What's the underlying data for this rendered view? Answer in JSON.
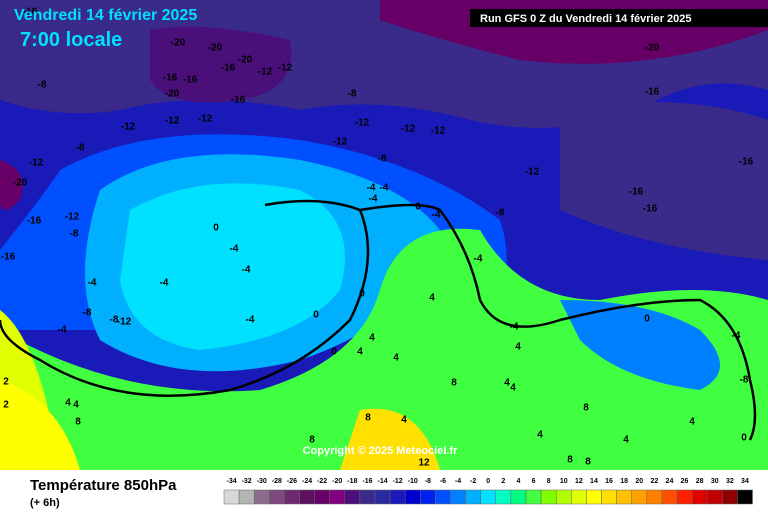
{
  "header": {
    "date": "Vendredi 14 février 2025",
    "time": "7:00 locale",
    "run": "Run GFS 0 Z du Vendredi 14 février 2025"
  },
  "footer": {
    "title": "Température 850hPa",
    "step": "(+ 6h)"
  },
  "copyright": "Copyright © 2025 Meteociel.fr",
  "legend": {
    "values": [
      -34,
      -32,
      -30,
      -28,
      -26,
      -24,
      -22,
      -20,
      -18,
      -16,
      -14,
      -12,
      -10,
      -8,
      -6,
      -4,
      -2,
      0,
      2,
      4,
      6,
      8,
      10,
      12,
      14,
      16,
      18,
      20,
      22,
      24,
      26,
      28,
      30,
      32,
      34
    ],
    "colors": [
      "#d8d8d8",
      "#b4b4b4",
      "#8c6c8c",
      "#7e4a7e",
      "#6e2a70",
      "#5e1060",
      "#660066",
      "#800080",
      "#4b0f7a",
      "#3a2a8a",
      "#2a2aa0",
      "#1a1ab8",
      "#0000d0",
      "#0020f0",
      "#0050ff",
      "#0080ff",
      "#00b0ff",
      "#00e0ff",
      "#00ffc0",
      "#00ff80",
      "#40ff40",
      "#80ff00",
      "#b0ff00",
      "#e0ff00",
      "#ffff00",
      "#ffe000",
      "#ffc000",
      "#ffa000",
      "#ff8000",
      "#ff5000",
      "#ff2000",
      "#e00000",
      "#c00000",
      "#900000",
      "#000000"
    ]
  },
  "map_labels": [
    "-16",
    "-20",
    "-20",
    "-16",
    "-16",
    "-20",
    "-16",
    "-20",
    "-12",
    "-12",
    "-16",
    "-8",
    "-8",
    "-12",
    "-12",
    "-12",
    "-12",
    "-12",
    "-12",
    "-12",
    "-8",
    "-20",
    "-16",
    "-12",
    "-16",
    "-16",
    "-16",
    "-12",
    "-8",
    "-20",
    "-16",
    "-12",
    "-8",
    "-16",
    "-8",
    "-4",
    "-4",
    "-4",
    "0",
    "-4",
    "0",
    "-4",
    "-4",
    "-4",
    "-4",
    "-8",
    "-8",
    "-12",
    "-4",
    "-4",
    "0",
    "0",
    "0",
    "4",
    "4",
    "4",
    "4",
    "8",
    "4",
    "4",
    "-4",
    "4",
    "-4",
    "0",
    "-4",
    "-8",
    "4",
    "4",
    "2",
    "2",
    "8",
    "8",
    "4",
    "4",
    "8",
    "4",
    "4",
    "0",
    "8",
    "12",
    "8",
    "8"
  ]
}
